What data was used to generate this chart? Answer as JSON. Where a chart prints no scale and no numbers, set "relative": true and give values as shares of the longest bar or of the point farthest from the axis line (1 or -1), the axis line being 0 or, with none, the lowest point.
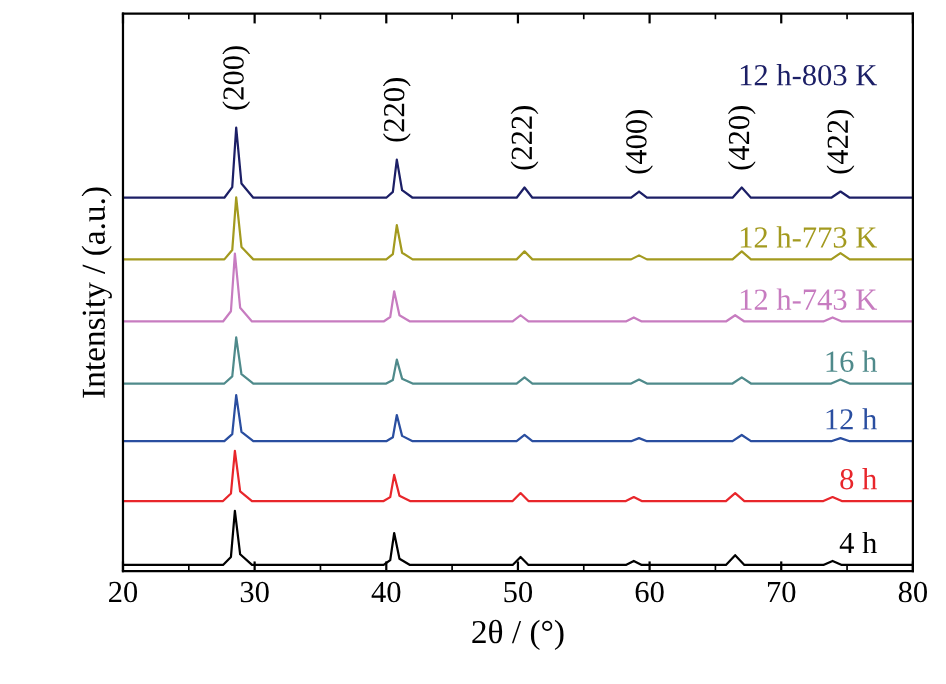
{
  "chart_data": {
    "type": "line",
    "relative": true,
    "xlabel": "2θ / (°)",
    "ylabel": "Intensity / (a.u.)",
    "xlim": [
      20,
      80
    ],
    "xticks": [
      20,
      30,
      40,
      50,
      60,
      70,
      80
    ],
    "grid": false,
    "legend": false,
    "annotations": [
      {
        "text": "(200)",
        "x": 28.6,
        "y": 1.0
      },
      {
        "text": "(220)",
        "x": 40.8,
        "y": 0.928
      },
      {
        "text": "(222)",
        "x": 50.5,
        "y": 0.865
      },
      {
        "text": "(400)",
        "x": 59.2,
        "y": 0.856
      },
      {
        "text": "(420)",
        "x": 67.0,
        "y": 0.865
      },
      {
        "text": "(422)",
        "x": 74.5,
        "y": 0.856
      }
    ],
    "series": [
      {
        "name": "4 h",
        "color": "#000000",
        "x": [
          20,
          27.6,
          28.2,
          28.5,
          28.9,
          29.8,
          39.8,
          40.3,
          40.6,
          41.0,
          41.8,
          49.6,
          50.2,
          50.8,
          58.2,
          58.8,
          59.4,
          65.8,
          66.5,
          67.2,
          73.2,
          73.9,
          74.6,
          80
        ],
        "values": [
          0.014,
          0.014,
          0.032,
          0.136,
          0.038,
          0.014,
          0.014,
          0.025,
          0.086,
          0.028,
          0.014,
          0.014,
          0.032,
          0.014,
          0.014,
          0.023,
          0.014,
          0.014,
          0.036,
          0.014,
          0.014,
          0.023,
          0.014,
          0.014
        ]
      },
      {
        "name": "8 h",
        "color": "#e8262b",
        "x": [
          20,
          27.6,
          28.2,
          28.5,
          28.9,
          29.8,
          39.8,
          40.3,
          40.6,
          41.0,
          41.8,
          49.6,
          50.2,
          50.8,
          58.2,
          58.8,
          59.4,
          65.8,
          66.5,
          67.2,
          73.2,
          73.9,
          74.6,
          80
        ],
        "values": [
          0.158,
          0.158,
          0.175,
          0.271,
          0.18,
          0.158,
          0.158,
          0.167,
          0.217,
          0.17,
          0.158,
          0.158,
          0.176,
          0.158,
          0.158,
          0.167,
          0.158,
          0.158,
          0.176,
          0.158,
          0.158,
          0.167,
          0.158,
          0.158
        ]
      },
      {
        "name": "12 h",
        "color": "#2a4ea0",
        "x": [
          20,
          27.7,
          28.3,
          28.6,
          29.0,
          29.9,
          40.0,
          40.5,
          40.8,
          41.2,
          42.0,
          49.9,
          50.5,
          51.1,
          58.6,
          59.2,
          59.8,
          66.3,
          67.0,
          67.7,
          73.8,
          74.5,
          75.2,
          80
        ],
        "values": [
          0.293,
          0.293,
          0.309,
          0.397,
          0.314,
          0.293,
          0.293,
          0.302,
          0.352,
          0.305,
          0.293,
          0.293,
          0.307,
          0.293,
          0.293,
          0.3,
          0.293,
          0.293,
          0.307,
          0.293,
          0.293,
          0.3,
          0.293,
          0.293
        ]
      },
      {
        "name": "16 h",
        "color": "#4f8a8b",
        "x": [
          20,
          27.7,
          28.3,
          28.6,
          29.0,
          29.9,
          40.0,
          40.5,
          40.8,
          41.2,
          42.0,
          49.9,
          50.5,
          51.1,
          58.6,
          59.2,
          59.8,
          66.3,
          67.0,
          67.7,
          73.8,
          74.5,
          75.2,
          80
        ],
        "values": [
          0.423,
          0.423,
          0.439,
          0.527,
          0.444,
          0.423,
          0.423,
          0.431,
          0.477,
          0.434,
          0.423,
          0.423,
          0.437,
          0.423,
          0.423,
          0.432,
          0.423,
          0.423,
          0.437,
          0.423,
          0.423,
          0.432,
          0.423,
          0.423
        ]
      },
      {
        "name": "12 h-743 K",
        "color": "#c77cc0",
        "x": [
          20,
          27.6,
          28.2,
          28.5,
          28.9,
          29.8,
          39.8,
          40.3,
          40.6,
          41.0,
          41.8,
          49.6,
          50.2,
          50.8,
          58.2,
          58.8,
          59.4,
          65.8,
          66.5,
          67.2,
          73.2,
          73.9,
          74.6,
          80
        ],
        "values": [
          0.563,
          0.563,
          0.586,
          0.716,
          0.594,
          0.563,
          0.563,
          0.573,
          0.631,
          0.577,
          0.563,
          0.563,
          0.577,
          0.563,
          0.563,
          0.572,
          0.563,
          0.563,
          0.577,
          0.563,
          0.563,
          0.572,
          0.563,
          0.563
        ]
      },
      {
        "name": "12 h-773 K",
        "color": "#a39a1f",
        "x": [
          20,
          27.7,
          28.3,
          28.6,
          29.0,
          29.9,
          40.0,
          40.5,
          40.8,
          41.2,
          42.0,
          49.9,
          50.5,
          51.1,
          58.6,
          59.2,
          59.8,
          66.3,
          67.0,
          67.7,
          73.8,
          74.5,
          75.2,
          80
        ],
        "values": [
          0.703,
          0.703,
          0.724,
          0.843,
          0.731,
          0.703,
          0.703,
          0.715,
          0.78,
          0.718,
          0.703,
          0.703,
          0.721,
          0.703,
          0.703,
          0.712,
          0.703,
          0.703,
          0.721,
          0.703,
          0.703,
          0.717,
          0.703,
          0.703
        ]
      },
      {
        "name": "12 h-803 K",
        "color": "#1c1f66",
        "x": [
          20,
          27.7,
          28.3,
          28.6,
          29.0,
          29.9,
          40.0,
          40.5,
          40.8,
          41.2,
          42.0,
          49.9,
          50.5,
          51.1,
          58.6,
          59.2,
          59.8,
          66.3,
          67.0,
          67.7,
          73.8,
          74.5,
          75.2,
          80
        ],
        "values": [
          0.842,
          0.842,
          0.866,
          1.0,
          0.874,
          0.842,
          0.842,
          0.855,
          0.928,
          0.859,
          0.842,
          0.842,
          0.865,
          0.842,
          0.842,
          0.856,
          0.842,
          0.842,
          0.865,
          0.842,
          0.842,
          0.856,
          0.842,
          0.842
        ]
      }
    ]
  }
}
